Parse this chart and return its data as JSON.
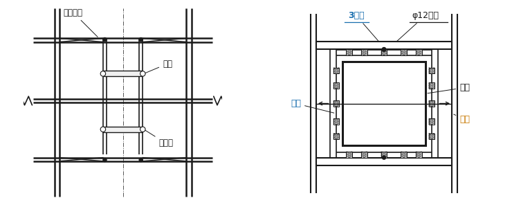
{
  "bg_color": "#ffffff",
  "line_color": "#1a1a1a",
  "text_color": "#1a1a1a",
  "blue_color": "#1a6faf",
  "orange_color": "#c87800",
  "label_满堂支架": "满堂支架",
  "label_柱箍": "柱箍",
  "label_柱模板": "柱模板",
  "label_3型卡": "3型卡",
  "label_螺杆": "φ12螺杆",
  "label_木枋": "木枋",
  "label_模板": "模板",
  "label_钢管": "钢管"
}
